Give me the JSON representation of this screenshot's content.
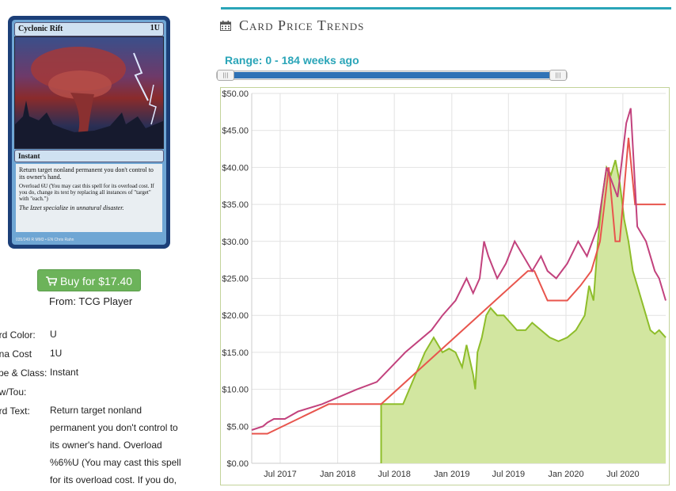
{
  "card": {
    "name": "Cyclonic Rift",
    "cost": "1U",
    "type_line": "Instant",
    "rules_1": "Return target nonland permanent you don't control to its owner's hand.",
    "rules_2": "Overload 6U (You may cast this spell for its overload cost. If you do, change its text by replacing all instances of \"target\" with \"each.\")",
    "flavor": "The Izzet specialize in unnatural disaster.",
    "footer": "035/249 R  MM3 • EN  Chris Rahn"
  },
  "buy": {
    "label": "Buy for $17.40",
    "source": "From: TCG Player"
  },
  "properties": [
    {
      "label": "ard Color:",
      "value": "U"
    },
    {
      "label": "ana Cost",
      "value": "1U"
    },
    {
      "label": "ype & Class:",
      "value": "Instant"
    },
    {
      "label": "ow/Tou:",
      "value": ""
    },
    {
      "label": "ard Text:",
      "value": "Return target nonland permanent you don't control to its owner's hand. Overload %6%U (You may cast this spell for its overload cost. If you do,"
    }
  ],
  "section": {
    "title": "Card Price Trends",
    "icon": "calendar-icon"
  },
  "range": {
    "label": "Range: 0 - 184 weeks ago",
    "start_fraction": 0.0,
    "end_fraction": 1.0
  },
  "colors": {
    "accent": "#2aa5b8",
    "buy": "#6cb35a",
    "slider": "#2f72b6",
    "green": "#8ebd2a",
    "red": "#e8554d",
    "pink": "#c2427d"
  },
  "chart_data": {
    "type": "line",
    "ylim": [
      0,
      50
    ],
    "yticks": [
      "$0.00",
      "$5.00",
      "$10.00",
      "$15.00",
      "$20.00",
      "$25.00",
      "$30.00",
      "$35.00",
      "$40.00",
      "$45.00",
      "$50.00"
    ],
    "xlim": [
      "2017-04-01",
      "2020-11-15"
    ],
    "xticks": [
      {
        "date": "2017-07-01",
        "label": "Jul 2017"
      },
      {
        "date": "2018-01-01",
        "label": "Jan 2018"
      },
      {
        "date": "2018-07-01",
        "label": "Jul 2018"
      },
      {
        "date": "2019-01-01",
        "label": "Jan 2019"
      },
      {
        "date": "2019-07-01",
        "label": "Jul 2019"
      },
      {
        "date": "2020-01-01",
        "label": "Jan 2020"
      },
      {
        "date": "2020-07-01",
        "label": "Jul 2020"
      }
    ],
    "grid": true,
    "series": [
      {
        "style": "area",
        "color": "#8ebd2a",
        "fill": "#d2e6a0",
        "points": [
          [
            "2018-05-20",
            0
          ],
          [
            "2018-05-20",
            8
          ],
          [
            "2018-07-29",
            8
          ],
          [
            "2018-10-07",
            15
          ],
          [
            "2018-11-04",
            17
          ],
          [
            "2018-12-02",
            15
          ],
          [
            "2018-12-23",
            15.5
          ],
          [
            "2019-01-13",
            15
          ],
          [
            "2019-02-03",
            13
          ],
          [
            "2019-02-17",
            16
          ],
          [
            "2019-03-10",
            12
          ],
          [
            "2019-03-17",
            10
          ],
          [
            "2019-03-24",
            15
          ],
          [
            "2019-04-07",
            17
          ],
          [
            "2019-04-21",
            20
          ],
          [
            "2019-05-05",
            21
          ],
          [
            "2019-05-26",
            20
          ],
          [
            "2019-06-16",
            20
          ],
          [
            "2019-07-07",
            19
          ],
          [
            "2019-07-28",
            18
          ],
          [
            "2019-08-25",
            18
          ],
          [
            "2019-09-15",
            19
          ],
          [
            "2019-10-13",
            18
          ],
          [
            "2019-11-10",
            17
          ],
          [
            "2019-12-08",
            16.5
          ],
          [
            "2020-01-05",
            17
          ],
          [
            "2020-02-02",
            18
          ],
          [
            "2020-03-01",
            20
          ],
          [
            "2020-03-15",
            24
          ],
          [
            "2020-03-29",
            22
          ],
          [
            "2020-04-12",
            30
          ],
          [
            "2020-04-26",
            36
          ],
          [
            "2020-05-10",
            40
          ],
          [
            "2020-05-24",
            39
          ],
          [
            "2020-06-07",
            41
          ],
          [
            "2020-06-21",
            38
          ],
          [
            "2020-07-05",
            33
          ],
          [
            "2020-07-19",
            30
          ],
          [
            "2020-08-02",
            26
          ],
          [
            "2020-08-16",
            24
          ],
          [
            "2020-08-30",
            22
          ],
          [
            "2020-09-13",
            20
          ],
          [
            "2020-09-27",
            18
          ],
          [
            "2020-10-11",
            17.5
          ],
          [
            "2020-10-25",
            18
          ],
          [
            "2020-11-15",
            17
          ]
        ]
      },
      {
        "style": "line",
        "color": "#e8554d",
        "points": [
          [
            "2017-04-01",
            4
          ],
          [
            "2017-05-21",
            4
          ],
          [
            "2017-12-03",
            8
          ],
          [
            "2018-05-20",
            8
          ],
          [
            "2019-09-01",
            26
          ],
          [
            "2019-09-22",
            26
          ],
          [
            "2019-10-13",
            24
          ],
          [
            "2019-11-03",
            22
          ],
          [
            "2020-01-05",
            22
          ],
          [
            "2020-02-16",
            24
          ],
          [
            "2020-03-22",
            26
          ],
          [
            "2020-04-19",
            30
          ],
          [
            "2020-05-17",
            40
          ],
          [
            "2020-06-07",
            30
          ],
          [
            "2020-06-21",
            30
          ],
          [
            "2020-07-19",
            44
          ],
          [
            "2020-08-09",
            35
          ],
          [
            "2020-11-15",
            35
          ]
        ]
      },
      {
        "style": "line",
        "color": "#c2427d",
        "points": [
          [
            "2017-04-01",
            4.5
          ],
          [
            "2017-05-07",
            5
          ],
          [
            "2017-05-21",
            5.5
          ],
          [
            "2017-06-11",
            6
          ],
          [
            "2017-07-16",
            6
          ],
          [
            "2017-08-27",
            7
          ],
          [
            "2017-11-12",
            8
          ],
          [
            "2018-01-07",
            9
          ],
          [
            "2018-03-04",
            10
          ],
          [
            "2018-05-06",
            11
          ],
          [
            "2018-08-05",
            15
          ],
          [
            "2018-10-28",
            18
          ],
          [
            "2018-12-02",
            20
          ],
          [
            "2019-01-13",
            22
          ],
          [
            "2019-02-17",
            25
          ],
          [
            "2019-03-10",
            23
          ],
          [
            "2019-03-31",
            25
          ],
          [
            "2019-04-14",
            30
          ],
          [
            "2019-04-28",
            28
          ],
          [
            "2019-05-26",
            25
          ],
          [
            "2019-06-23",
            27
          ],
          [
            "2019-07-21",
            30
          ],
          [
            "2019-08-18",
            28
          ],
          [
            "2019-09-15",
            26
          ],
          [
            "2019-10-13",
            28
          ],
          [
            "2019-11-03",
            26
          ],
          [
            "2019-12-01",
            25
          ],
          [
            "2020-01-05",
            27
          ],
          [
            "2020-02-09",
            30
          ],
          [
            "2020-03-08",
            28
          ],
          [
            "2020-04-12",
            32
          ],
          [
            "2020-05-10",
            40
          ],
          [
            "2020-06-14",
            36
          ],
          [
            "2020-07-12",
            46
          ],
          [
            "2020-07-26",
            48
          ],
          [
            "2020-08-16",
            32
          ],
          [
            "2020-09-13",
            30
          ],
          [
            "2020-10-11",
            26
          ],
          [
            "2020-10-25",
            25
          ],
          [
            "2020-11-15",
            22
          ]
        ]
      }
    ]
  }
}
